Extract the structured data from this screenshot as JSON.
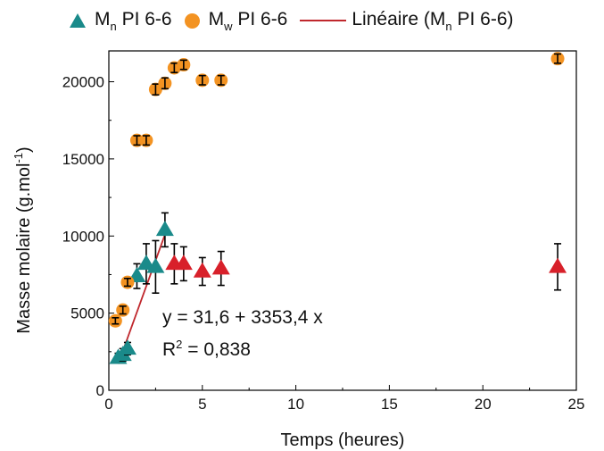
{
  "legend": {
    "item1": {
      "prefix": "M",
      "sub": "n",
      "suffix": " PI 6-6"
    },
    "item2": {
      "prefix": "M",
      "sub": "w",
      "suffix": " PI 6-6"
    },
    "item3": {
      "prefix": "Linéaire (M",
      "sub": "n",
      "suffix": " PI 6-6)"
    }
  },
  "annotation": {
    "equation": "y = 31,6 + 3353,4 x",
    "r2_prefix": "R",
    "r2_sup": "2",
    "r2_suffix": " = 0,838"
  },
  "axes": {
    "xlabel": "Temps (heures)",
    "ylabel_main": "Masse molaire (g.mol",
    "ylabel_sup": "-1",
    "ylabel_end": ")"
  },
  "chart_data": {
    "type": "scatter",
    "xlabel": "Temps (heures)",
    "ylabel": "Masse molaire (g.mol-1)",
    "xlim": [
      0,
      25
    ],
    "ylim": [
      0,
      22000
    ],
    "xticks": [
      0,
      5,
      10,
      15,
      20,
      25
    ],
    "yticks": [
      0,
      5000,
      10000,
      15000,
      20000
    ],
    "grid": false,
    "legend_position": "top",
    "colors": {
      "mn": "#1a8a8a",
      "mn_late": "#d8202a",
      "mw": "#f39322",
      "fit": "#c0282d",
      "errorbar": "#000000"
    },
    "series": [
      {
        "name": "Mn PI 6-6",
        "marker": "triangle",
        "points": [
          {
            "x": 0.5,
            "y": 2100,
            "err": 300
          },
          {
            "x": 0.75,
            "y": 2300,
            "err": 400
          },
          {
            "x": 1.0,
            "y": 2700,
            "err": 400
          },
          {
            "x": 1.5,
            "y": 7400,
            "err": 800
          },
          {
            "x": 2.0,
            "y": 8200,
            "err": 1300
          },
          {
            "x": 2.5,
            "y": 8000,
            "err": 1700
          },
          {
            "x": 3.0,
            "y": 10400,
            "err": 1100
          }
        ]
      },
      {
        "name": "Mn PI 6-6",
        "marker": "triangle",
        "color_key": "mn_late",
        "points": [
          {
            "x": 3.5,
            "y": 8200,
            "err": 1300
          },
          {
            "x": 4.0,
            "y": 8200,
            "err": 1100
          },
          {
            "x": 5.0,
            "y": 7700,
            "err": 900
          },
          {
            "x": 6.0,
            "y": 7900,
            "err": 1100
          },
          {
            "x": 24.0,
            "y": 8000,
            "err": 1500
          }
        ]
      },
      {
        "name": "Mw PI 6-6",
        "marker": "circle",
        "points": [
          {
            "x": 0.35,
            "y": 4500,
            "err": 200
          },
          {
            "x": 0.75,
            "y": 5200,
            "err": 250
          },
          {
            "x": 1.0,
            "y": 7000,
            "err": 250
          },
          {
            "x": 1.5,
            "y": 16200,
            "err": 300
          },
          {
            "x": 2.0,
            "y": 16200,
            "err": 300
          },
          {
            "x": 2.5,
            "y": 19500,
            "err": 350
          },
          {
            "x": 3.0,
            "y": 19900,
            "err": 350
          },
          {
            "x": 3.5,
            "y": 20900,
            "err": 300
          },
          {
            "x": 4.0,
            "y": 21100,
            "err": 300
          },
          {
            "x": 5.0,
            "y": 20100,
            "err": 300
          },
          {
            "x": 6.0,
            "y": 20100,
            "err": 300
          },
          {
            "x": 24.0,
            "y": 21500,
            "err": 300
          }
        ]
      },
      {
        "name": "Linéaire (Mn PI 6-6)",
        "type": "line",
        "x": [
          0.5,
          3.0
        ],
        "y": [
          1708,
          10092
        ]
      }
    ]
  }
}
